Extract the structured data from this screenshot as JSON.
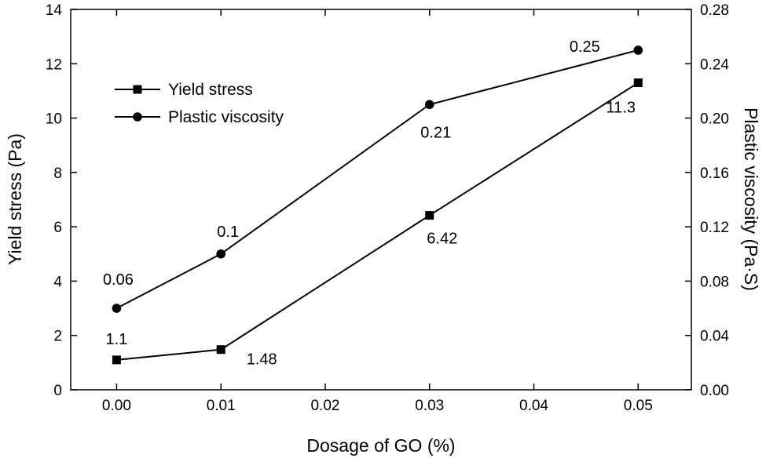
{
  "chart_data": {
    "type": "line",
    "x": [
      0.0,
      0.01,
      0.03,
      0.05
    ],
    "series": [
      {
        "name": "Yield stress",
        "axis": "left",
        "marker": "square",
        "values": [
          1.1,
          1.48,
          6.42,
          11.3
        ],
        "labels": [
          "1.1",
          "1.48",
          "6.42",
          "11.3"
        ]
      },
      {
        "name": "Plastic viscosity",
        "axis": "right",
        "marker": "circle",
        "values": [
          0.06,
          0.1,
          0.21,
          0.25
        ],
        "labels": [
          "0.06",
          "0.1",
          "0.21",
          "0.25"
        ]
      }
    ],
    "xlabel": "Dosage of GO (%)",
    "ylabel_left": "Yield stress (Pa)",
    "ylabel_right": "Plastic viscosity (Pa·S)",
    "x_ticks": [
      "0.00",
      "0.01",
      "0.02",
      "0.03",
      "0.04",
      "0.05"
    ],
    "x_tick_values": [
      0,
      0.01,
      0.02,
      0.03,
      0.04,
      0.05
    ],
    "left_ticks": [
      "0",
      "2",
      "4",
      "6",
      "8",
      "10",
      "12",
      "14"
    ],
    "left_tick_values": [
      0,
      2,
      4,
      6,
      8,
      10,
      12,
      14
    ],
    "right_ticks": [
      "0.00",
      "0.04",
      "0.08",
      "0.12",
      "0.16",
      "0.20",
      "0.24",
      "0.28"
    ],
    "right_tick_values": [
      0,
      0.04,
      0.08,
      0.12,
      0.16,
      0.2,
      0.24,
      0.28
    ],
    "x_range": [
      -0.0044,
      0.0551
    ],
    "left_range": [
      0,
      14
    ],
    "right_range": [
      0,
      0.28
    ],
    "legend": [
      "Yield stress",
      "Plastic viscosity"
    ],
    "grid": false,
    "legend_position": "upper-left-inside",
    "line_color": "#000000",
    "background_color": "#ffffff"
  }
}
